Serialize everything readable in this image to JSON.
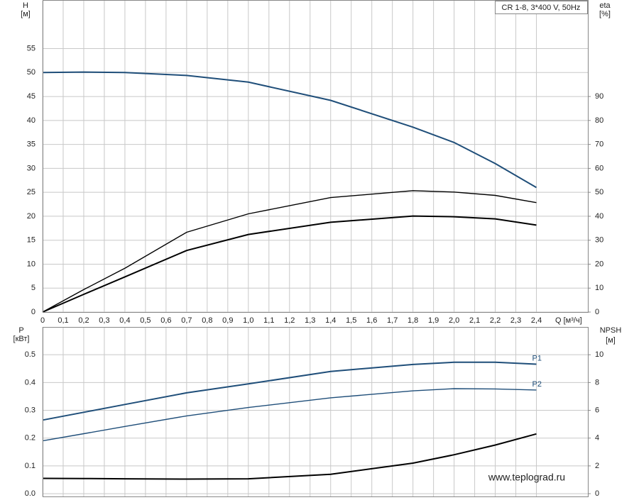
{
  "chart_data": [
    {
      "type": "line",
      "title": "CR 1-8, 3*400 V, 50Hz",
      "y_label": "H",
      "y_unit": "[м]",
      "y2_label": "eta",
      "y2_unit": "[%]",
      "x_label": "Q [м³/ч]",
      "x": [
        0,
        0.2,
        0.4,
        0.7,
        1.0,
        1.4,
        1.8,
        2.0,
        2.2,
        2.4
      ],
      "series": [
        {
          "color": "#1f4e79",
          "values": [
            50,
            50.1,
            50,
            49.4,
            48,
            44.2,
            38.6,
            35.4,
            31,
            26
          ]
        },
        {
          "color": "#000000",
          "axis": "y2",
          "values": [
            0,
            9.4,
            18.3,
            33.3,
            41,
            47.8,
            50.7,
            50.1,
            48.7,
            45.7
          ]
        },
        {
          "color": "#000000",
          "axis": "y2",
          "values": [
            0,
            7.4,
            14.7,
            25.7,
            32.4,
            37.5,
            40.1,
            39.8,
            38.9,
            36.3
          ]
        }
      ],
      "xlim": [
        0,
        2.65
      ],
      "xticks": [
        0,
        {
          "value": 0.1,
          "label": "0,1"
        },
        {
          "value": 0.2,
          "label": "0,2"
        },
        {
          "value": 0.3,
          "label": "0,3"
        },
        {
          "value": 0.4,
          "label": "0,4"
        },
        {
          "value": 0.5,
          "label": "0,5"
        },
        {
          "value": 0.6,
          "label": "0,6"
        },
        {
          "value": 0.7,
          "label": "0,7"
        },
        {
          "value": 0.8,
          "label": "0,8"
        },
        {
          "value": 0.9,
          "label": "0,9"
        },
        {
          "value": 1.0,
          "label": "1,0"
        },
        {
          "value": 1.1,
          "label": "1,1"
        },
        {
          "value": 1.2,
          "label": "1,2"
        },
        {
          "value": 1.3,
          "label": "1,3"
        },
        {
          "value": 1.4,
          "label": "1,4"
        },
        {
          "value": 1.5,
          "label": "1,5"
        },
        {
          "value": 1.6,
          "label": "1,6"
        },
        {
          "value": 1.7,
          "label": "1,7"
        },
        {
          "value": 1.8,
          "label": "1,8"
        },
        {
          "value": 1.9,
          "label": "1,9"
        },
        {
          "value": 2.0,
          "label": "2,0"
        },
        {
          "value": 2.1,
          "label": "2,1"
        },
        {
          "value": 2.2,
          "label": "2,2"
        },
        {
          "value": 2.3,
          "label": "2,3"
        },
        {
          "value": 2.4,
          "label": "2,4"
        }
      ],
      "ylim": [
        0,
        65
      ],
      "yticks": [
        0,
        5,
        10,
        15,
        20,
        25,
        30,
        35,
        40,
        45,
        50,
        55
      ],
      "y2lim": [
        0,
        130
      ],
      "y2ticks": [
        0,
        10,
        20,
        30,
        40,
        50,
        60,
        70,
        80,
        90
      ],
      "grid": true
    },
    {
      "type": "line",
      "y_label": "P",
      "y_unit": "[кВт]",
      "y2_label": "NPSH",
      "y2_unit": "[м]",
      "annotation": "www.teplograd.ru",
      "x": [
        0,
        0.2,
        0.4,
        0.7,
        1.0,
        1.4,
        1.8,
        2.0,
        2.2,
        2.4
      ],
      "series": [
        {
          "name": "P1",
          "color": "#1f4e79",
          "values": [
            0.265,
            0.293,
            0.321,
            0.363,
            0.395,
            0.44,
            0.465,
            0.473,
            0.473,
            0.466
          ]
        },
        {
          "name": "P2",
          "color": "#1f4e79",
          "values": [
            0.19,
            0.216,
            0.242,
            0.28,
            0.31,
            0.345,
            0.37,
            0.378,
            0.377,
            0.373
          ]
        },
        {
          "color": "#000000",
          "axis": "y2",
          "values": [
            1.1,
            1.09,
            1.07,
            1.05,
            1.07,
            1.4,
            2.2,
            2.8,
            3.5,
            4.3
          ]
        }
      ],
      "xlim": [
        0,
        2.65
      ],
      "ylim": [
        -0.01,
        0.6
      ],
      "yticks": [
        {
          "value": 0,
          "label": "0.0"
        },
        0.1,
        0.2,
        0.3,
        0.4,
        0.5
      ],
      "y2lim": [
        -0.2,
        12
      ],
      "y2ticks": [
        0,
        2,
        4,
        6,
        8,
        10
      ],
      "grid": true
    }
  ]
}
